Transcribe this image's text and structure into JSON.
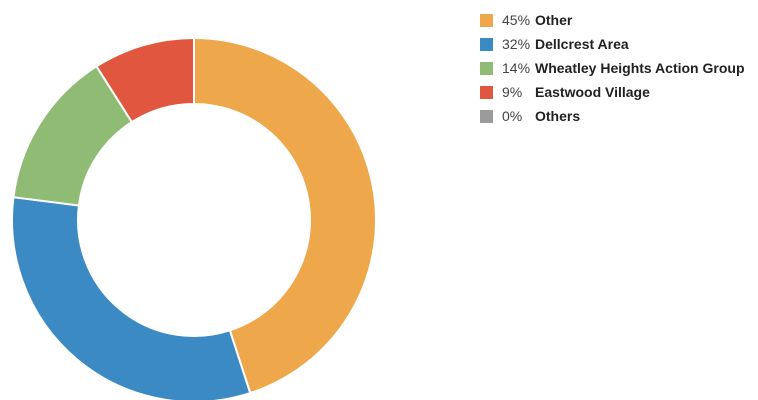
{
  "chart_data": {
    "type": "pie",
    "variant": "donut",
    "slices": [
      {
        "label": "Other",
        "percent_label": "45%",
        "value": 45,
        "color": "#eea84b"
      },
      {
        "label": "Dellcrest Area",
        "percent_label": "32%",
        "value": 32,
        "color": "#3c8ac3"
      },
      {
        "label": "Wheatley Heights Action Group",
        "percent_label": "14%",
        "value": 14,
        "color": "#8fbb74"
      },
      {
        "label": "Eastwood Village",
        "percent_label": "9%",
        "value": 9,
        "color": "#e0563f"
      },
      {
        "label": "Others",
        "percent_label": "0%",
        "value": 0,
        "color": "#9b9b9b"
      }
    ],
    "legend_position": "top-right"
  }
}
